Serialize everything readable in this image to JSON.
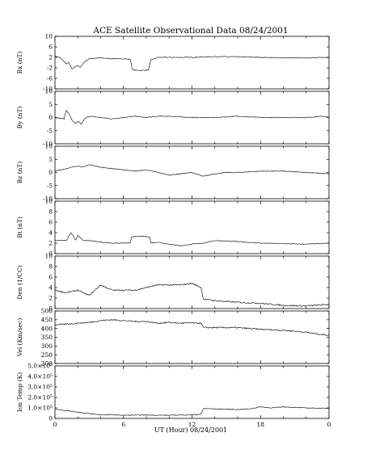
{
  "chart_data": {
    "type": "line",
    "title": "ACE Satellite Observational Data   08/24/2001",
    "xlabel": "UT (Hour)  08/24/2001",
    "x_ticks": [
      "0",
      "6",
      "12",
      "18",
      "0"
    ],
    "xlim": [
      0,
      24
    ],
    "panels": [
      {
        "ylabel": "Bx (nT)",
        "ylim": [
          -10,
          10
        ],
        "y_ticks": [
          "10",
          "6",
          "2",
          "-2",
          "-6",
          "-10"
        ],
        "y_tick_values": [
          10,
          6,
          2,
          -2,
          -6,
          -10
        ],
        "x": [
          0,
          0.4,
          0.8,
          1.0,
          1.2,
          1.5,
          1.8,
          2.0,
          2.2,
          2.5,
          3,
          4,
          5,
          6,
          6.6,
          6.8,
          7.5,
          8.2,
          8.4,
          9,
          10,
          12,
          14,
          16,
          18,
          20,
          22,
          24
        ],
        "y": [
          2.5,
          2.0,
          0.5,
          -0.5,
          0,
          -2.5,
          -1.5,
          -1.0,
          -2.0,
          0,
          1.5,
          1.8,
          1.5,
          1.5,
          1.2,
          -2.8,
          -3.0,
          -2.8,
          1.0,
          2.0,
          2.0,
          2.0,
          2.3,
          2.2,
          2.0,
          1.8,
          1.8,
          2.0
        ]
      },
      {
        "ylabel": "By (nT)",
        "ylim": [
          -10,
          10
        ],
        "y_ticks": [
          "10",
          "5",
          "0",
          "-5",
          "-10"
        ],
        "y_tick_values": [
          10,
          5,
          0,
          -5,
          -10
        ],
        "x": [
          0,
          0.8,
          1.0,
          1.2,
          1.5,
          1.8,
          2.0,
          2.3,
          2.6,
          3,
          4,
          5,
          6,
          7,
          8,
          9,
          10,
          12,
          14,
          16,
          18,
          20,
          22,
          23.5,
          24
        ],
        "y": [
          0,
          -0.5,
          3.0,
          1.5,
          -1.0,
          -2.5,
          -1.5,
          -2.5,
          -0.5,
          0.5,
          0,
          -0.5,
          0,
          0.5,
          0,
          0.5,
          0.5,
          0,
          0,
          0.5,
          0,
          0,
          0,
          0.5,
          0
        ]
      },
      {
        "ylabel": "Bz (nT)",
        "ylim": [
          -10,
          10
        ],
        "y_ticks": [
          "10",
          "5",
          "0",
          "-5",
          "-10"
        ],
        "y_tick_values": [
          10,
          5,
          0,
          -5,
          -10
        ],
        "x": [
          0,
          0.5,
          1,
          1.5,
          2,
          2.5,
          3,
          4,
          5,
          6,
          7,
          8,
          9,
          10,
          11,
          12,
          13,
          14,
          15,
          16,
          18,
          20,
          22,
          24
        ],
        "y": [
          0.5,
          1.0,
          1.5,
          2.0,
          2.5,
          2.0,
          3.0,
          2.0,
          1.5,
          1.0,
          0.5,
          1.0,
          0,
          -1.0,
          -0.5,
          0,
          -1.5,
          -0.5,
          0,
          0,
          0.5,
          0.5,
          0,
          -0.5
        ]
      },
      {
        "ylabel": "Bt (nT)",
        "ylim": [
          0,
          10
        ],
        "y_ticks": [
          "10",
          "8",
          "6",
          "4",
          "2",
          "0"
        ],
        "y_tick_values": [
          10,
          8,
          6,
          4,
          2,
          0
        ],
        "x": [
          0,
          1,
          1.4,
          1.6,
          1.8,
          2,
          2.2,
          2.5,
          3,
          4,
          5,
          6,
          6.6,
          6.7,
          7.5,
          8.3,
          8.4,
          9,
          10,
          11,
          12,
          13,
          14,
          16,
          18,
          20,
          22,
          24
        ],
        "y": [
          2.5,
          2.5,
          4.0,
          3.5,
          2.5,
          3.5,
          3.0,
          2.5,
          2.5,
          2.2,
          2.0,
          2.0,
          2.0,
          3.2,
          3.3,
          3.2,
          2.0,
          2.2,
          1.8,
          1.5,
          1.8,
          2.0,
          2.5,
          2.3,
          2.0,
          1.9,
          1.8,
          2.0
        ]
      },
      {
        "ylabel": "Den (1/CC)",
        "ylim": [
          0,
          10
        ],
        "y_ticks": [
          "10",
          "8",
          "6",
          "4",
          "2",
          "0"
        ],
        "y_tick_values": [
          10,
          8,
          6,
          4,
          2,
          0
        ],
        "x": [
          0,
          1,
          2,
          3,
          4,
          5,
          6,
          7,
          8,
          9,
          10,
          11,
          12,
          12.8,
          13,
          14,
          16,
          18,
          20,
          22,
          24
        ],
        "y": [
          3.5,
          3.0,
          3.5,
          2.5,
          4.5,
          3.5,
          3.5,
          3.5,
          4.0,
          4.5,
          4.5,
          4.5,
          4.8,
          4.0,
          1.8,
          1.5,
          1.2,
          1.0,
          0.6,
          0.5,
          0.8
        ]
      },
      {
        "ylabel": "Vel (Km/sec)",
        "ylim": [
          200,
          500
        ],
        "y_ticks": [
          "500",
          "450",
          "400",
          "350",
          "300",
          "250",
          "200"
        ],
        "y_tick_values": [
          500,
          450,
          400,
          350,
          300,
          250,
          200
        ],
        "x": [
          0,
          1,
          2,
          3,
          4,
          5,
          6,
          7,
          8,
          9,
          10,
          11,
          12,
          12.8,
          13,
          14,
          16,
          18,
          20,
          21,
          22,
          23,
          24
        ],
        "y": [
          420,
          425,
          430,
          435,
          445,
          450,
          445,
          440,
          440,
          430,
          435,
          430,
          432,
          430,
          405,
          405,
          405,
          395,
          390,
          385,
          378,
          368,
          362
        ]
      },
      {
        "ylabel": "Ion Temp (K)",
        "ylim": [
          0,
          500000
        ],
        "y_ticks": [
          "5.0×10⁵",
          "4.0×10⁵",
          "3.0×10⁵",
          "2.0×10⁵",
          "1.0×10⁵",
          "0"
        ],
        "y_tick_values": [
          500000,
          400000,
          300000,
          200000,
          100000,
          0
        ],
        "x": [
          0,
          1,
          2,
          3,
          4,
          5,
          6,
          8,
          10,
          12,
          12.8,
          13,
          14,
          16,
          17,
          18,
          19,
          20,
          22,
          24
        ],
        "y": [
          90000,
          75000,
          60000,
          45000,
          35000,
          35000,
          30000,
          32000,
          30000,
          35000,
          40000,
          95000,
          90000,
          85000,
          90000,
          110000,
          100000,
          110000,
          100000,
          95000
        ]
      }
    ]
  }
}
